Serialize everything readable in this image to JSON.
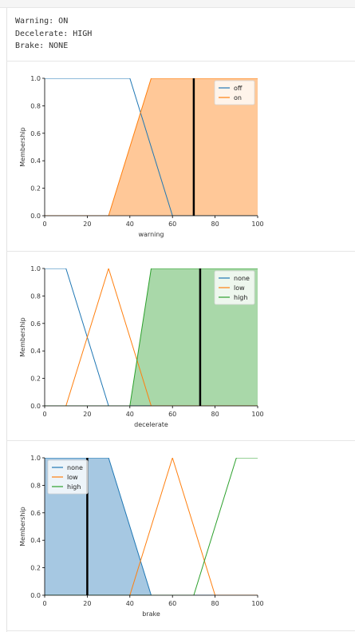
{
  "status_lines": [
    "Warning: ON",
    "Decelerate: HIGH",
    "Brake: NONE"
  ],
  "colors": {
    "blue": "#1f77b4",
    "orange": "#ff7f0e",
    "green": "#2ca02c",
    "marker": "#000000"
  },
  "chart_data": [
    {
      "type": "line",
      "xlabel": "warning",
      "ylabel": "Membership",
      "xlim": [
        0,
        100
      ],
      "ylim": [
        0,
        1
      ],
      "xticks": [
        "0",
        "20",
        "40",
        "60",
        "80",
        "100"
      ],
      "yticks": [
        "0.0",
        "0.2",
        "0.4",
        "0.6",
        "0.8",
        "1.0"
      ],
      "legend": "top-right",
      "series": [
        {
          "name": "off",
          "color": "#1f77b4",
          "points": [
            [
              0,
              1
            ],
            [
              40,
              1
            ],
            [
              60,
              0
            ],
            [
              100,
              0
            ]
          ]
        },
        {
          "name": "on",
          "color": "#ff7f0e",
          "points": [
            [
              0,
              0
            ],
            [
              30,
              0
            ],
            [
              50,
              1
            ],
            [
              100,
              1
            ]
          ]
        }
      ],
      "filled_series": "on",
      "fill_color": "#ffc898",
      "marker_x": 70
    },
    {
      "type": "line",
      "xlabel": "decelerate",
      "ylabel": "Membership",
      "xlim": [
        0,
        100
      ],
      "ylim": [
        0,
        1
      ],
      "xticks": [
        "0",
        "20",
        "40",
        "60",
        "80",
        "100"
      ],
      "yticks": [
        "0.0",
        "0.2",
        "0.4",
        "0.6",
        "0.8",
        "1.0"
      ],
      "legend": "top-right",
      "series": [
        {
          "name": "none",
          "color": "#1f77b4",
          "points": [
            [
              0,
              1
            ],
            [
              10,
              1
            ],
            [
              30,
              0
            ],
            [
              100,
              0
            ]
          ]
        },
        {
          "name": "low",
          "color": "#ff7f0e",
          "points": [
            [
              0,
              0
            ],
            [
              10,
              0
            ],
            [
              30,
              1
            ],
            [
              50,
              0
            ],
            [
              100,
              0
            ]
          ]
        },
        {
          "name": "high",
          "color": "#2ca02c",
          "points": [
            [
              0,
              0
            ],
            [
              40,
              0
            ],
            [
              50,
              1
            ],
            [
              100,
              1
            ]
          ]
        }
      ],
      "filled_series": "high",
      "fill_color": "#a9d8a9",
      "marker_x": 73
    },
    {
      "type": "line",
      "xlabel": "brake",
      "ylabel": "Membership",
      "xlim": [
        0,
        100
      ],
      "ylim": [
        0,
        1
      ],
      "xticks": [
        "0",
        "20",
        "40",
        "60",
        "80",
        "100"
      ],
      "yticks": [
        "0.0",
        "0.2",
        "0.4",
        "0.6",
        "0.8",
        "1.0"
      ],
      "legend": "top-left",
      "series": [
        {
          "name": "none",
          "color": "#1f77b4",
          "points": [
            [
              0,
              1
            ],
            [
              30,
              1
            ],
            [
              50,
              0
            ],
            [
              100,
              0
            ]
          ]
        },
        {
          "name": "low",
          "color": "#ff7f0e",
          "points": [
            [
              0,
              0
            ],
            [
              40,
              0
            ],
            [
              60,
              1
            ],
            [
              80,
              0
            ],
            [
              100,
              0
            ]
          ]
        },
        {
          "name": "high",
          "color": "#2ca02c",
          "points": [
            [
              0,
              0
            ],
            [
              70,
              0
            ],
            [
              90,
              1
            ],
            [
              100,
              1
            ]
          ]
        }
      ],
      "filled_series": "none",
      "fill_color": "#a6c8e2",
      "marker_x": 20
    }
  ]
}
